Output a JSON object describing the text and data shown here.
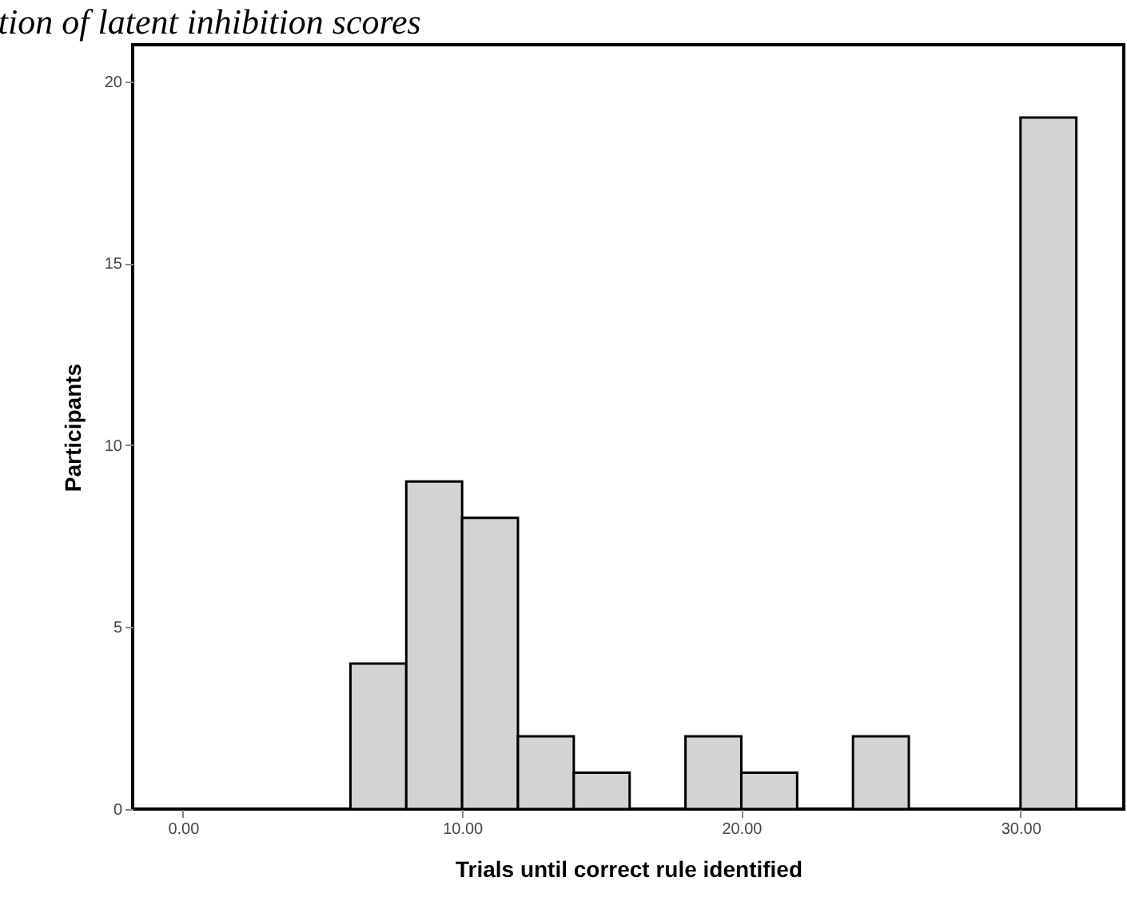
{
  "chart_data": {
    "type": "histogram",
    "title": "tion of latent inhibition scores",
    "xlabel": "Trials until correct rule identified",
    "ylabel": "Participants",
    "bins": [
      6,
      8,
      10,
      12,
      14,
      16,
      18,
      20,
      22,
      24,
      26,
      28,
      30,
      32
    ],
    "values": [
      4,
      9,
      8,
      2,
      1,
      0,
      2,
      1,
      0,
      2,
      0,
      0,
      19
    ],
    "color": "#d3d3d3",
    "xlim": [
      -1.8,
      33.7
    ],
    "xticks": [
      {
        "value": 0,
        "label": "0.00"
      },
      {
        "value": 10,
        "label": "10.00"
      },
      {
        "value": 20,
        "label": "20.00"
      },
      {
        "value": 30,
        "label": "30.00"
      }
    ],
    "ylim": [
      0,
      21
    ],
    "yticks": [
      0,
      5,
      10,
      15,
      20
    ],
    "grid": false
  }
}
